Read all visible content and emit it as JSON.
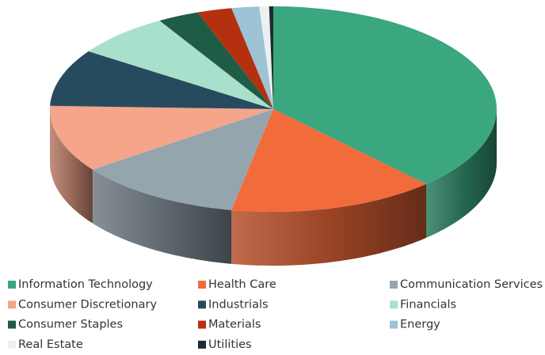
{
  "chart_data": {
    "type": "pie",
    "categories": [
      "Information Technology",
      "Health Care",
      "Communication Services",
      "Consumer Discretionary",
      "Industrials",
      "Financials",
      "Consumer Staples",
      "Materials",
      "Energy",
      "Real Estate",
      "Utilities"
    ],
    "values": [
      38,
      15,
      12,
      10.5,
      9,
      7,
      3,
      2.5,
      2,
      0.7,
      0.3
    ],
    "colors": [
      "#3aa77f",
      "#f26b3a",
      "#95a5ae",
      "#f4a58a",
      "#274b5e",
      "#a8e0cb",
      "#1e5c46",
      "#b5300f",
      "#9dc3d5",
      "#eef0f0",
      "#1c2b36"
    ],
    "legend": "bottom"
  }
}
